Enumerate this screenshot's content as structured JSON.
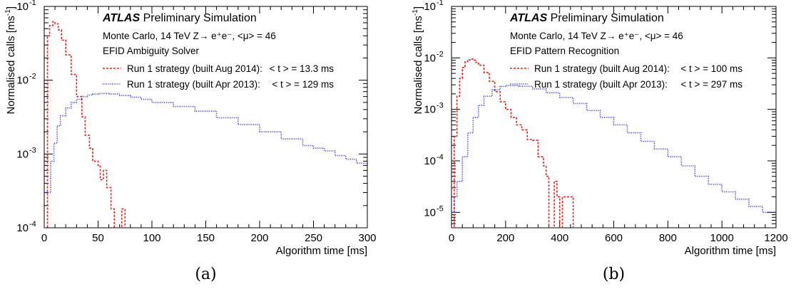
{
  "chart_data": [
    {
      "id": "a",
      "type": "line",
      "panel_label": "(a)",
      "xlabel": "Algorithm time [ms]",
      "ylabel": "Normalised calls [ms",
      "ylabel_sup": "-1",
      "ylabel_close": "]",
      "xlim": [
        0,
        300
      ],
      "ylim_log": [
        -4,
        -1
      ],
      "log_y": true,
      "xticks": [
        0,
        50,
        100,
        150,
        200,
        250,
        300
      ],
      "yticks": [
        {
          "exp": -1,
          "label": "10",
          "sup": "-1"
        },
        {
          "exp": -2,
          "label": "10",
          "sup": "-2"
        },
        {
          "exp": -3,
          "label": "10",
          "sup": "-3"
        },
        {
          "exp": -4,
          "label": "10",
          "sup": "-4"
        }
      ],
      "annotation": {
        "atlas": "ATLAS",
        "status": "Preliminary Simulation",
        "conditions": "Monte Carlo, 14 TeV  Z→ e⁺e⁻, <μ> = 46",
        "sample": "EFID Ambiguity Solver"
      },
      "legend": [
        {
          "label": "Run 1 strategy (built Aug 2014):",
          "stat": "< t > = 13.3 ms",
          "color": "#e8221b",
          "dash": "3,2"
        },
        {
          "label": "Run 1 strategy (built Apr 2013):",
          "stat": "< t > =  129 ms",
          "color": "#2a2fd6",
          "dash": "1,1.6"
        }
      ],
      "series": [
        {
          "name": "Run 1 strategy (built Aug 2014)",
          "color": "#e8221b",
          "dash": "3,2",
          "x": [
            0,
            3,
            5,
            8,
            10,
            13,
            16,
            20,
            25,
            30,
            35,
            38,
            42,
            45,
            50,
            52,
            55,
            58,
            62,
            65,
            68,
            72,
            75
          ],
          "y": [
            0.0001,
            0.04,
            0.055,
            0.062,
            0.058,
            0.048,
            0.035,
            0.022,
            0.012,
            0.006,
            0.0032,
            0.0018,
            0.0012,
            0.0008,
            0.0007,
            0.00045,
            0.0006,
            0.00035,
            0.00018,
            0.0001,
            0.0001,
            0.00018,
            0.0001
          ]
        },
        {
          "name": "Run 1 strategy (built Apr 2013)",
          "color": "#2a2fd6",
          "dash": "1,1.6",
          "x": [
            0,
            3,
            6,
            9,
            12,
            15,
            20,
            25,
            30,
            35,
            40,
            45,
            50,
            60,
            70,
            80,
            90,
            100,
            120,
            140,
            160,
            180,
            200,
            220,
            240,
            250,
            260,
            270,
            280,
            290,
            300
          ],
          "y": [
            0.0003,
            0.0003,
            0.0008,
            0.0014,
            0.0024,
            0.0033,
            0.0042,
            0.005,
            0.0055,
            0.006,
            0.0063,
            0.0065,
            0.0066,
            0.0065,
            0.0062,
            0.0059,
            0.0055,
            0.005,
            0.0044,
            0.0038,
            0.0031,
            0.0025,
            0.002,
            0.0016,
            0.0013,
            0.0012,
            0.0011,
            0.00095,
            0.00085,
            0.00075,
            0.00068
          ]
        }
      ]
    },
    {
      "id": "b",
      "type": "line",
      "panel_label": "(b)",
      "xlabel": "Algorithm time [ms]",
      "ylabel": "Normalised calls [ms",
      "ylabel_sup": "-1",
      "ylabel_close": "]",
      "xlim": [
        0,
        1200
      ],
      "ylim_log": [
        -5.3,
        -1
      ],
      "log_y": true,
      "xticks": [
        0,
        200,
        400,
        600,
        800,
        1000,
        1200
      ],
      "yticks": [
        {
          "exp": -1,
          "label": "10",
          "sup": "-1"
        },
        {
          "exp": -2,
          "label": "10",
          "sup": "-2"
        },
        {
          "exp": -3,
          "label": "10",
          "sup": "-3"
        },
        {
          "exp": -4,
          "label": "10",
          "sup": "-4"
        },
        {
          "exp": -5,
          "label": "10",
          "sup": "-5"
        }
      ],
      "annotation": {
        "atlas": "ATLAS",
        "status": "Preliminary Simulation",
        "conditions": "Monte Carlo, 14 TeV  Z→ e⁺e⁻, <μ> = 46",
        "sample": "EFID Pattern Recognition"
      },
      "legend": [
        {
          "label": "Run 1 strategy (built Aug 2014):",
          "stat": "< t > =  100 ms",
          "color": "#e8221b",
          "dash": "3,2"
        },
        {
          "label": "Run 1 strategy (built Apr 2013):",
          "stat": "< t > =  297 ms",
          "color": "#2a2fd6",
          "dash": "1,1.6"
        }
      ],
      "series": [
        {
          "name": "Run 1 strategy (built Aug 2014)",
          "color": "#e8221b",
          "dash": "3,2",
          "x": [
            0,
            10,
            20,
            30,
            40,
            50,
            60,
            70,
            80,
            90,
            100,
            120,
            140,
            160,
            180,
            200,
            220,
            240,
            260,
            280,
            300,
            320,
            340,
            350,
            360,
            370,
            380,
            390,
            400,
            410,
            420,
            440,
            450
          ],
          "y": [
            5e-06,
            0.0003,
            0.0018,
            0.004,
            0.0065,
            0.0085,
            0.0092,
            0.0095,
            0.009,
            0.0082,
            0.0072,
            0.0052,
            0.0035,
            0.0022,
            0.0014,
            0.001,
            0.0007,
            0.0005,
            0.0004,
            0.00026,
            0.00025,
            0.00012,
            8e-05,
            5e-05,
            5e-06,
            5e-06,
            4e-05,
            2e-05,
            5e-06,
            2e-05,
            2e-05,
            2e-05,
            5e-06
          ]
        },
        {
          "name": "Run 1 strategy (built Apr 2013)",
          "color": "#2a2fd6",
          "dash": "1,1.6",
          "x": [
            0,
            10,
            20,
            40,
            60,
            80,
            100,
            120,
            150,
            180,
            200,
            220,
            250,
            300,
            350,
            400,
            450,
            500,
            550,
            600,
            650,
            700,
            750,
            800,
            850,
            900,
            950,
            1000,
            1050,
            1100,
            1150,
            1200
          ],
          "y": [
            1e-05,
            2e-05,
            4e-05,
            0.00012,
            0.00035,
            0.0007,
            0.0012,
            0.0018,
            0.0024,
            0.0028,
            0.0029,
            0.0029,
            0.0028,
            0.0025,
            0.0021,
            0.0017,
            0.0013,
            0.00095,
            0.0007,
            0.0005,
            0.00035,
            0.00024,
            0.00017,
            0.00012,
            8e-05,
            5e-05,
            3.5e-05,
            2.5e-05,
            1.8e-05,
            1.3e-05,
            1e-05,
            8e-06
          ]
        }
      ]
    }
  ]
}
